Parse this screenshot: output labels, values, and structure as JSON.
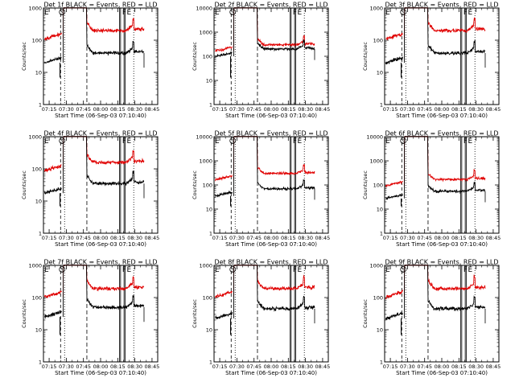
{
  "figure": {
    "background": "#ffffff"
  },
  "colors": {
    "events": "#000000",
    "lld": "#e00000",
    "frame": "#000000"
  },
  "chart_data": [
    {
      "type": "line",
      "title": "Det 1f BLACK = Events, RED = LLD",
      "xlabel": "Start Time (06-Sep-03 07:10:40)",
      "ylabel": "Counts/sec",
      "yscale": "log",
      "ylim": [
        1,
        1000
      ],
      "xlim": [
        7.167,
        8.833
      ],
      "xtick_labels": [
        "07:15",
        "07:30",
        "07:45",
        "08:00",
        "08:15",
        "08:30",
        "08:45"
      ],
      "ytick_labels": [
        "1",
        "10",
        "100",
        "1000"
      ],
      "markers": {
        "E_left": "E",
        "S": "S",
        "F": "F",
        "E_right": "E"
      },
      "series": [
        {
          "name": "LLD",
          "color": "red",
          "level": 200
        },
        {
          "name": "Events",
          "color": "black",
          "level": 40
        }
      ]
    },
    {
      "type": "line",
      "title": "Det 2f BLACK = Events, RED = LLD",
      "xlabel": "Start Time (06-Sep-03 07:10:40)",
      "ylabel": "Counts/sec",
      "yscale": "log",
      "ylim": [
        1,
        10000
      ],
      "xlim": [
        7.167,
        8.833
      ],
      "xtick_labels": [
        "07:15",
        "07:30",
        "07:45",
        "08:00",
        "08:15",
        "08:30",
        "08:45"
      ],
      "ytick_labels": [
        "1",
        "10",
        "100",
        "1000",
        "10000"
      ],
      "markers": {
        "E_left": "E",
        "S": "S",
        "F": "F",
        "E_right": "E"
      },
      "series": [
        {
          "name": "LLD",
          "color": "red",
          "level": 300
        },
        {
          "name": "Events",
          "color": "black",
          "level": 200
        }
      ]
    },
    {
      "type": "line",
      "title": "Det 3f BLACK = Events, RED = LLD",
      "xlabel": "Start Time (06-Sep-03 07:10:40)",
      "ylabel": "Counts/sec",
      "yscale": "log",
      "ylim": [
        1,
        1000
      ],
      "xlim": [
        7.167,
        8.833
      ],
      "xtick_labels": [
        "07:15",
        "07:30",
        "07:45",
        "08:00",
        "08:15",
        "08:30",
        "08:45"
      ],
      "ytick_labels": [
        "1",
        "10",
        "100",
        "1000"
      ],
      "markers": {
        "E_left": "E",
        "S": "S",
        "F": "F",
        "E_right": "E"
      },
      "series": [
        {
          "name": "LLD",
          "color": "red",
          "level": 200
        },
        {
          "name": "Events",
          "color": "black",
          "level": 40
        }
      ]
    },
    {
      "type": "line",
      "title": "Det 4f BLACK = Events, RED = LLD",
      "xlabel": "Start Time (06-Sep-03 07:10:40)",
      "ylabel": "Counts/sec",
      "yscale": "log",
      "ylim": [
        1,
        1000
      ],
      "xlim": [
        7.167,
        8.833
      ],
      "xtick_labels": [
        "07:15",
        "07:30",
        "07:45",
        "08:00",
        "08:15",
        "08:30",
        "08:45"
      ],
      "ytick_labels": [
        "1",
        "10",
        "100",
        "1000"
      ],
      "markers": {
        "E_left": "E",
        "S": "S",
        "F": "F",
        "E_right": "E"
      },
      "series": [
        {
          "name": "LLD",
          "color": "red",
          "level": 160
        },
        {
          "name": "Events",
          "color": "black",
          "level": 35
        }
      ]
    },
    {
      "type": "line",
      "title": "Det 5f BLACK = Events, RED = LLD",
      "xlabel": "Start Time (06-Sep-03 07:10:40)",
      "ylabel": "Counts/sec",
      "yscale": "log",
      "ylim": [
        1,
        10000
      ],
      "xlim": [
        7.167,
        8.833
      ],
      "xtick_labels": [
        "07:15",
        "07:30",
        "07:45",
        "08:00",
        "08:15",
        "08:30",
        "08:45"
      ],
      "ytick_labels": [
        "1",
        "10",
        "100",
        "1000",
        "10000"
      ],
      "markers": {
        "E_left": "E",
        "S": "S",
        "F": "F",
        "E_right": "E"
      },
      "series": [
        {
          "name": "LLD",
          "color": "red",
          "level": 300
        },
        {
          "name": "Events",
          "color": "black",
          "level": 70
        }
      ]
    },
    {
      "type": "line",
      "title": "Det 6f BLACK = Events, RED = LLD",
      "xlabel": "Start Time (06-Sep-03 07:10:40)",
      "ylabel": "Counts/sec",
      "yscale": "log",
      "ylim": [
        1,
        10000
      ],
      "xlim": [
        7.167,
        8.833
      ],
      "xtick_labels": [
        "07:15",
        "07:30",
        "07:45",
        "08:00",
        "08:15",
        "08:30",
        "08:45"
      ],
      "ytick_labels": [
        "1",
        "10",
        "100",
        "1000",
        "10000"
      ],
      "markers": {
        "E_left": "E",
        "S": "S",
        "F": "F",
        "E_right": "E"
      },
      "series": [
        {
          "name": "LLD",
          "color": "red",
          "level": 170
        },
        {
          "name": "Events",
          "color": "black",
          "level": 55
        }
      ]
    },
    {
      "type": "line",
      "title": "Det 7f BLACK = Events, RED = LLD",
      "xlabel": "Start Time (06-Sep-03 07:10:40)",
      "ylabel": "Counts/sec",
      "yscale": "log",
      "ylim": [
        1,
        1000
      ],
      "xlim": [
        7.167,
        8.833
      ],
      "xtick_labels": [
        "07:15",
        "07:30",
        "07:45",
        "08:00",
        "08:15",
        "08:30",
        "08:45"
      ],
      "ytick_labels": [
        "1",
        "10",
        "100",
        "1000"
      ],
      "markers": {
        "E_left": "E",
        "S": "S",
        "F": "F",
        "E_right": "E"
      },
      "series": [
        {
          "name": "LLD",
          "color": "red",
          "level": 190
        },
        {
          "name": "Events",
          "color": "black",
          "level": 50
        }
      ]
    },
    {
      "type": "line",
      "title": "Det 8f BLACK = Events, RED = LLD",
      "xlabel": "Start Time (06-Sep-03 07:10:40)",
      "ylabel": "Counts/sec",
      "yscale": "log",
      "ylim": [
        1,
        1000
      ],
      "xlim": [
        7.167,
        8.833
      ],
      "xtick_labels": [
        "07:15",
        "07:30",
        "07:45",
        "08:00",
        "08:15",
        "08:30",
        "08:45"
      ],
      "ytick_labels": [
        "1",
        "10",
        "100",
        "1000"
      ],
      "markers": {
        "E_left": "E",
        "S": "S",
        "F": "F",
        "E_right": "E"
      },
      "series": [
        {
          "name": "LLD",
          "color": "red",
          "level": 190
        },
        {
          "name": "Events",
          "color": "black",
          "level": 45
        }
      ]
    },
    {
      "type": "line",
      "title": "Det 9f BLACK = Events, RED = LLD",
      "xlabel": "Start Time (06-Sep-03 07:10:40)",
      "ylabel": "Counts/sec",
      "yscale": "log",
      "ylim": [
        1,
        1000
      ],
      "xlim": [
        7.167,
        8.833
      ],
      "xtick_labels": [
        "07:15",
        "07:30",
        "07:45",
        "08:00",
        "08:15",
        "08:30",
        "08:45"
      ],
      "ytick_labels": [
        "1",
        "10",
        "100",
        "1000"
      ],
      "markers": {
        "E_left": "E",
        "S": "S",
        "F": "F",
        "E_right": "E"
      },
      "series": [
        {
          "name": "LLD",
          "color": "red",
          "level": 190
        },
        {
          "name": "Events",
          "color": "black",
          "level": 45
        }
      ]
    }
  ]
}
